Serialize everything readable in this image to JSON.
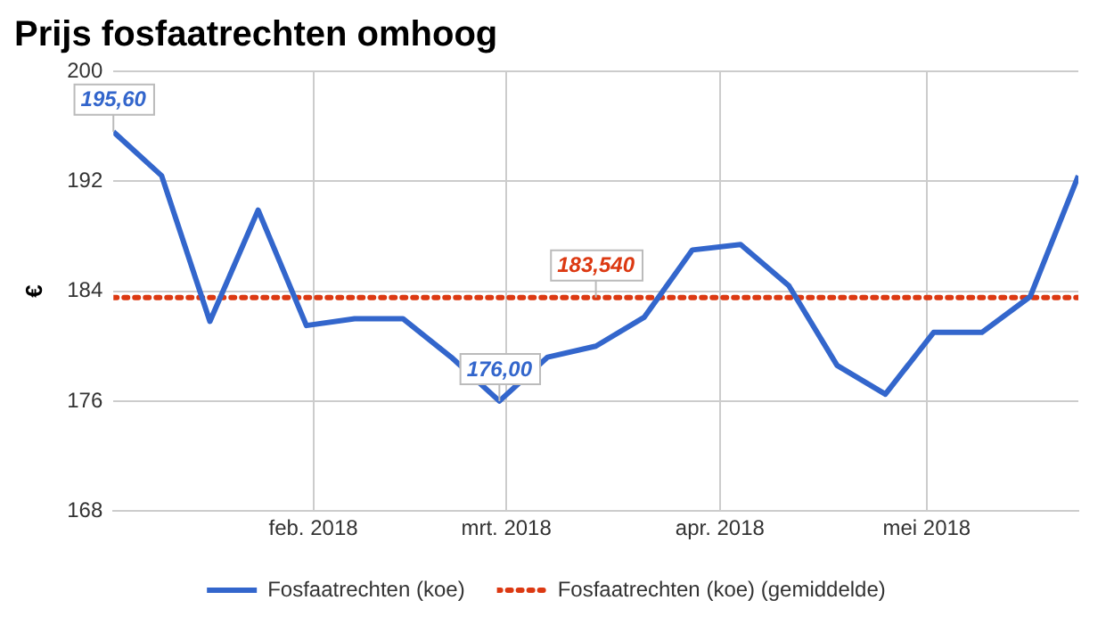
{
  "chart_data": {
    "type": "line",
    "title": "Prijs fosfaatrechten omhoog",
    "ylabel": "€",
    "x": [
      "2018-01-03",
      "2018-01-10",
      "2018-01-17",
      "2018-01-24",
      "2018-01-31",
      "2018-02-07",
      "2018-02-14",
      "2018-02-21",
      "2018-02-28",
      "2018-03-07",
      "2018-03-14",
      "2018-03-21",
      "2018-03-28",
      "2018-04-04",
      "2018-04-11",
      "2018-04-18",
      "2018-04-25",
      "2018-05-02",
      "2018-05-09",
      "2018-05-16",
      "2018-05-23"
    ],
    "series": [
      {
        "name": "Fosfaatrechten (koe)",
        "color": "#3366cc",
        "values": [
          195.6,
          192.4,
          181.8,
          189.9,
          181.5,
          182.0,
          182.0,
          179.2,
          176.0,
          179.2,
          180.0,
          182.1,
          187.0,
          187.4,
          184.4,
          178.6,
          176.5,
          181.0,
          181.0,
          183.6,
          192.4
        ]
      },
      {
        "name": "Fosfaatrechten (koe) (gemiddelde)",
        "color": "#dc3912",
        "line_style": "dotted",
        "values": [
          183.54,
          183.54,
          183.54,
          183.54,
          183.54,
          183.54,
          183.54,
          183.54,
          183.54,
          183.54,
          183.54,
          183.54,
          183.54,
          183.54,
          183.54,
          183.54,
          183.54,
          183.54,
          183.54,
          183.54,
          183.54
        ]
      }
    ],
    "annotations": [
      {
        "text": "195,60",
        "x": "2018-01-03",
        "y": 195.6
      },
      {
        "text": "176,00",
        "x": "2018-02-28",
        "y": 176.0
      },
      {
        "text": "183,540",
        "x": "2018-03-14",
        "y": 183.54
      }
    ],
    "xlim": [
      "2018-01-03",
      "2018-05-23"
    ],
    "xticks": [
      {
        "value": "2018-02-01",
        "label": "feb. 2018"
      },
      {
        "value": "2018-03-01",
        "label": "mrt. 2018"
      },
      {
        "value": "2018-04-01",
        "label": "apr. 2018"
      },
      {
        "value": "2018-05-01",
        "label": "mei 2018"
      }
    ],
    "ylim": [
      168,
      200
    ],
    "yticks": [
      168,
      176,
      184,
      192,
      200
    ],
    "grid": true,
    "legend": "bottom",
    "marker": "none",
    "line_style": "solid"
  }
}
